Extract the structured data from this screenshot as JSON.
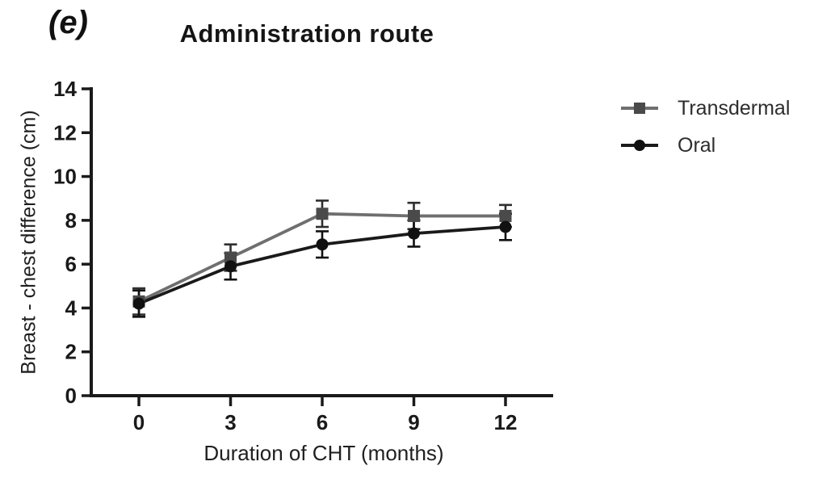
{
  "chart_data": {
    "type": "line",
    "panel_label": "(e)",
    "title": "Administration route",
    "xlabel": "Duration of CHT (months)",
    "ylabel": "Breast - chest difference (cm)",
    "x": [
      0,
      3,
      6,
      9,
      12
    ],
    "xticks": [
      0,
      3,
      6,
      9,
      12
    ],
    "yticks": [
      0,
      2,
      4,
      6,
      8,
      10,
      12,
      14
    ],
    "xlim": [
      -1.56,
      13.56
    ],
    "ylim": [
      0,
      14
    ],
    "grid": false,
    "legend_position": "right",
    "axis_color": "#1a1a1a",
    "series": [
      {
        "name": "Transdermal",
        "marker": "square",
        "color": "#6f6f6f",
        "marker_color": "#4a4a4a",
        "error_color": "#2e2e2e",
        "values": [
          4.3,
          6.3,
          8.3,
          8.2,
          8.2
        ],
        "errors": [
          0.6,
          0.6,
          0.6,
          0.6,
          0.5
        ]
      },
      {
        "name": "Oral",
        "marker": "circle",
        "color": "#1a1a1a",
        "marker_color": "#111111",
        "error_color": "#111111",
        "values": [
          4.2,
          5.9,
          6.9,
          7.4,
          7.7
        ],
        "errors": [
          0.6,
          0.6,
          0.6,
          0.6,
          0.6
        ]
      }
    ]
  }
}
